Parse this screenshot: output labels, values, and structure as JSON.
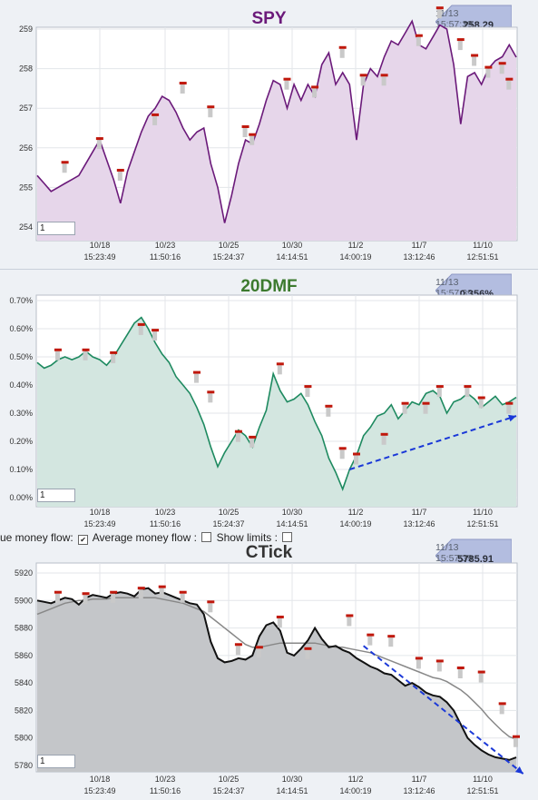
{
  "colors": {
    "spy": "#6b1a7a",
    "spy_fill": "#e6d6ea",
    "dmf": "#1e8a60",
    "dmf_fill": "#d3e6e0",
    "ctick": "#111111",
    "ctick_fill": "#c4c6c9",
    "ma": "#888888",
    "trend": "#1a38d8",
    "title_spy": "#6b1a7a",
    "title_dmf": "#3c7a2e",
    "title_ctick": "#333333"
  },
  "x_ticks": [
    {
      "date": "10/18",
      "time": "15:23:49"
    },
    {
      "date": "10/23",
      "time": "11:50:16"
    },
    {
      "date": "10/25",
      "time": "15:24:37"
    },
    {
      "date": "10/30",
      "time": "14:14:51"
    },
    {
      "date": "11/2",
      "time": "14:00:19"
    },
    {
      "date": "11/7",
      "time": "13:12:46"
    },
    {
      "date": "11/10",
      "time": "12:51:51"
    }
  ],
  "controls": {
    "money_flow_label": "ue money flow:",
    "avg_money_flow_label": "Average money flow :",
    "show_limits_label": "Show limits :",
    "avg_checked": "✔",
    "field_value": "1"
  },
  "chart_data": [
    {
      "type": "area",
      "title": "SPY",
      "callout": {
        "timestamp": "11/13 15:57:39",
        "value": "258.29"
      },
      "yticks": [
        "259",
        "258",
        "257",
        "256",
        "255",
        "254"
      ],
      "ylim": [
        253.7,
        259.6
      ],
      "series": [
        {
          "values": [
            255.3,
            255.1,
            254.9,
            255.0,
            255.1,
            255.2,
            255.3,
            255.6,
            255.9,
            256.2,
            255.7,
            255.2,
            254.6,
            255.4,
            255.9,
            256.4,
            256.8,
            257.0,
            257.3,
            257.2,
            256.9,
            256.5,
            256.2,
            256.4,
            256.5,
            255.6,
            255.0,
            254.1,
            254.8,
            255.6,
            256.2,
            256.1,
            256.6,
            257.2,
            257.7,
            257.6,
            257.0,
            257.6,
            257.2,
            257.6,
            257.3,
            258.1,
            258.4,
            257.6,
            257.9,
            257.6,
            256.2,
            257.6,
            258.0,
            257.8,
            258.3,
            258.7,
            258.6,
            258.9,
            259.2,
            258.6,
            258.5,
            258.8,
            259.1,
            259.0,
            258.1,
            256.6,
            257.8,
            257.9,
            257.6,
            258.0,
            258.2,
            258.3,
            258.6,
            258.29
          ]
        }
      ],
      "markers": [
        [
          4,
          255.6
        ],
        [
          9,
          256.2
        ],
        [
          12,
          255.4
        ],
        [
          17,
          256.8
        ],
        [
          21,
          257.6
        ],
        [
          25,
          257.0
        ],
        [
          30,
          256.5
        ],
        [
          31,
          256.3
        ],
        [
          36,
          257.7
        ],
        [
          40,
          257.5
        ],
        [
          44,
          258.5
        ],
        [
          47,
          257.8
        ],
        [
          50,
          257.8
        ],
        [
          55,
          258.8
        ],
        [
          58,
          259.5
        ],
        [
          61,
          258.7
        ],
        [
          63,
          258.3
        ],
        [
          65,
          258.0
        ],
        [
          67,
          258.1
        ],
        [
          68,
          257.7
        ]
      ]
    },
    {
      "type": "area",
      "title": "20DMF",
      "callout": {
        "timestamp": "11/13 15:57:39",
        "value": "0.356%"
      },
      "yticks": [
        "0.70%",
        "0.60%",
        "0.50%",
        "0.40%",
        "0.30%",
        "0.20%",
        "0.10%",
        "0.00%"
      ],
      "ylim": [
        -0.0005,
        0.0072
      ],
      "series": [
        {
          "values": [
            0.0048,
            0.0046,
            0.0047,
            0.0049,
            0.005,
            0.0049,
            0.005,
            0.0052,
            0.005,
            0.0049,
            0.0047,
            0.005,
            0.0054,
            0.0058,
            0.0062,
            0.0064,
            0.006,
            0.0055,
            0.0051,
            0.0048,
            0.0043,
            0.004,
            0.0037,
            0.0032,
            0.0026,
            0.0018,
            0.0011,
            0.0016,
            0.002,
            0.0024,
            0.0022,
            0.0018,
            0.0025,
            0.0031,
            0.0044,
            0.0038,
            0.0034,
            0.0035,
            0.0037,
            0.0033,
            0.0027,
            0.0022,
            0.0014,
            0.0009,
            0.0003,
            0.001,
            0.0015,
            0.0022,
            0.0025,
            0.0029,
            0.003,
            0.0033,
            0.0028,
            0.0031,
            0.0034,
            0.0033,
            0.0037,
            0.0038,
            0.0036,
            0.003,
            0.0034,
            0.0035,
            0.0037,
            0.0035,
            0.0032,
            0.0034,
            0.0036,
            0.0033,
            0.0034,
            0.00356
          ]
        }
      ],
      "markers": [
        [
          3,
          0.0052
        ],
        [
          7,
          0.0052
        ],
        [
          11,
          0.0051
        ],
        [
          15,
          0.0061
        ],
        [
          17,
          0.0059
        ],
        [
          23,
          0.0044
        ],
        [
          25,
          0.0037
        ],
        [
          29,
          0.0023
        ],
        [
          31,
          0.0021
        ],
        [
          35,
          0.0047
        ],
        [
          39,
          0.0039
        ],
        [
          42,
          0.0032
        ],
        [
          44,
          0.0017
        ],
        [
          46,
          0.0015
        ],
        [
          50,
          0.0022
        ],
        [
          53,
          0.0033
        ],
        [
          56,
          0.0033
        ],
        [
          58,
          0.0039
        ],
        [
          62,
          0.0039
        ],
        [
          64,
          0.0035
        ],
        [
          68,
          0.0033
        ]
      ],
      "trend": [
        [
          45,
          0.001
        ],
        [
          69,
          0.0029
        ]
      ]
    },
    {
      "type": "area",
      "title": "CTick",
      "callout": {
        "timestamp": "11/13 15:57:39",
        "value": "5785.91"
      },
      "yticks": [
        "5920",
        "5900",
        "5880",
        "5860",
        "5840",
        "5820",
        "5800",
        "5780"
      ],
      "ylim": [
        5773,
        5924
      ],
      "series": [
        {
          "name": "CTick",
          "values": [
            5900,
            5899,
            5898,
            5900,
            5902,
            5901,
            5897,
            5902,
            5904,
            5903,
            5902,
            5905,
            5906,
            5905,
            5903,
            5908,
            5909,
            5905,
            5906,
            5904,
            5902,
            5900,
            5898,
            5897,
            5890,
            5870,
            5858,
            5855,
            5856,
            5858,
            5857,
            5860,
            5874,
            5882,
            5884,
            5878,
            5862,
            5860,
            5865,
            5871,
            5880,
            5872,
            5866,
            5867,
            5864,
            5862,
            5858,
            5855,
            5852,
            5850,
            5847,
            5846,
            5842,
            5838,
            5840,
            5837,
            5833,
            5831,
            5830,
            5826,
            5820,
            5810,
            5800,
            5795,
            5791,
            5788,
            5786,
            5785,
            5784,
            5785.91
          ]
        },
        {
          "name": "MA",
          "values": [
            5890,
            5892,
            5894,
            5896,
            5898,
            5899,
            5900,
            5900,
            5901,
            5901,
            5901,
            5902,
            5902,
            5902,
            5902,
            5902,
            5902,
            5902,
            5901,
            5900,
            5899,
            5898,
            5896,
            5894,
            5892,
            5888,
            5884,
            5880,
            5876,
            5872,
            5868,
            5866,
            5866,
            5867,
            5868,
            5869,
            5869,
            5869,
            5869,
            5869,
            5869,
            5868,
            5867,
            5866,
            5866,
            5865,
            5864,
            5863,
            5862,
            5860,
            5858,
            5856,
            5854,
            5852,
            5850,
            5848,
            5846,
            5844,
            5843,
            5841,
            5838,
            5835,
            5831,
            5826,
            5821,
            5815,
            5810,
            5805,
            5801,
            5799
          ]
        }
      ],
      "markers": [
        [
          3,
          5905
        ],
        [
          7,
          5904
        ],
        [
          11,
          5905
        ],
        [
          15,
          5908
        ],
        [
          18,
          5909
        ],
        [
          21,
          5905
        ],
        [
          25,
          5898
        ],
        [
          29,
          5867
        ],
        [
          32,
          5865
        ],
        [
          35,
          5887
        ],
        [
          39,
          5864
        ],
        [
          45,
          5888
        ],
        [
          48,
          5874
        ],
        [
          51,
          5873
        ],
        [
          55,
          5857
        ],
        [
          58,
          5855
        ],
        [
          61,
          5850
        ],
        [
          64,
          5847
        ],
        [
          67,
          5824
        ],
        [
          69,
          5800
        ]
      ],
      "trend": [
        [
          47,
          5867
        ],
        [
          70,
          5774
        ]
      ]
    }
  ]
}
